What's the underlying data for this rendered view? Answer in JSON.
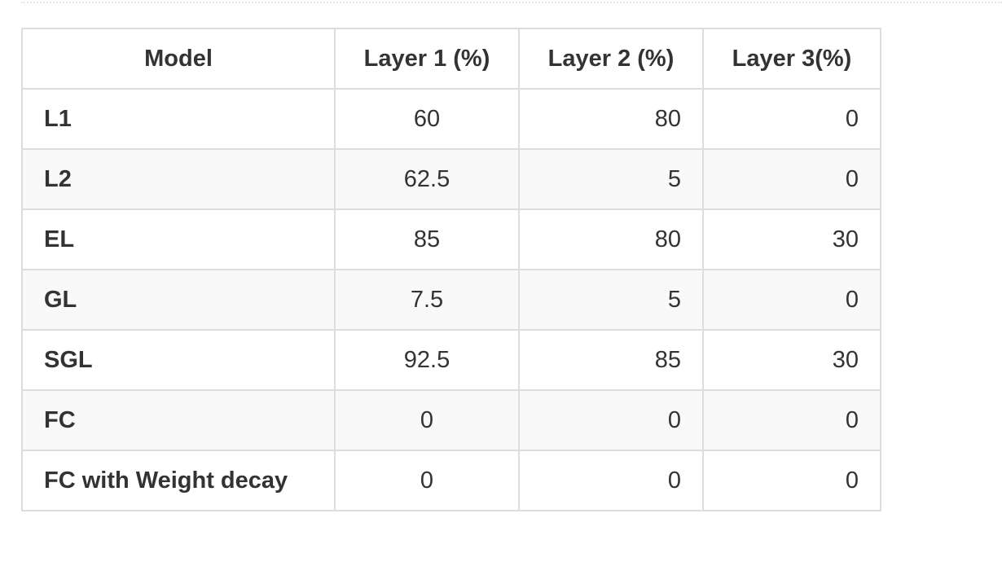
{
  "table": {
    "headers": [
      "Model",
      "Layer 1 (%)",
      "Layer 2 (%)",
      "Layer 3(%)"
    ],
    "rows": [
      {
        "model": "L1",
        "layer1": "60",
        "layer2": "80",
        "layer3": "0"
      },
      {
        "model": "L2",
        "layer1": "62.5",
        "layer2": "5",
        "layer3": "0"
      },
      {
        "model": "EL",
        "layer1": "85",
        "layer2": "80",
        "layer3": "30"
      },
      {
        "model": "GL",
        "layer1": "7.5",
        "layer2": "5",
        "layer3": "0"
      },
      {
        "model": "SGL",
        "layer1": "92.5",
        "layer2": "85",
        "layer3": "30"
      },
      {
        "model": "FC",
        "layer1": "0",
        "layer2": "0",
        "layer3": "0"
      },
      {
        "model": "FC with Weight decay",
        "layer1": "0",
        "layer2": "0",
        "layer3": "0"
      }
    ]
  },
  "colors": {
    "text": "#333333",
    "border": "#dddddd",
    "stripe": "#f9f9f9",
    "background": "#ffffff"
  }
}
